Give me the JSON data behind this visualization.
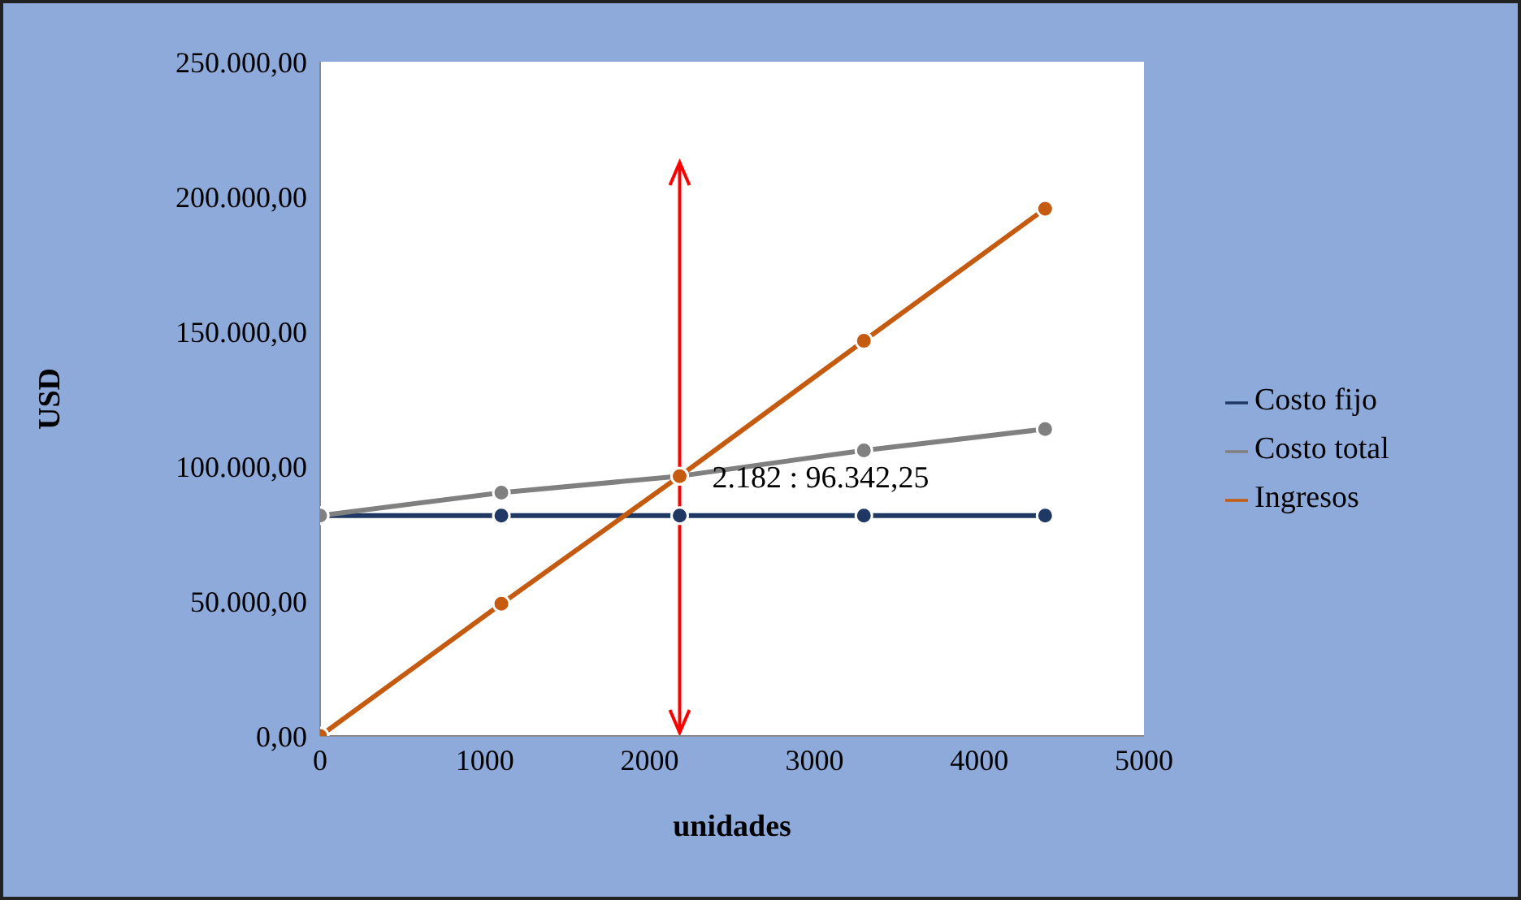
{
  "chart_data": {
    "type": "line",
    "xlabel": "unidades",
    "ylabel": "USD",
    "x": [
      0,
      1100,
      2182,
      3300,
      4400
    ],
    "series": [
      {
        "name": "Costo fijo",
        "color": "#1f3864",
        "values": [
          81700,
          81700,
          81700,
          81700,
          81700
        ]
      },
      {
        "name": "Costo total",
        "color": "#808080",
        "values": [
          81700,
          90200,
          96342.25,
          105900,
          113800
        ]
      },
      {
        "name": "Ingresos",
        "color": "#c55a11",
        "values": [
          0,
          49000,
          96342.25,
          146500,
          195500
        ]
      }
    ],
    "xlim": [
      0,
      5000
    ],
    "xticks": [
      0,
      1000,
      2000,
      3000,
      4000,
      5000
    ],
    "ylim": [
      0,
      250000
    ],
    "yticks": [
      {
        "value": 0,
        "label": "0,00"
      },
      {
        "value": 50000,
        "label": "50.000,00"
      },
      {
        "value": 100000,
        "label": "100.000,00"
      },
      {
        "value": 150000,
        "label": "150.000,00"
      },
      {
        "value": 200000,
        "label": "200.000,00"
      },
      {
        "value": 250000,
        "label": "250.000,00"
      }
    ],
    "annotations": [
      {
        "text": "2.182 : 96.342,25",
        "x": 2182,
        "y": 96342.25
      }
    ],
    "ref_lines": [
      {
        "axis": "x",
        "value": 2182,
        "color": "#ff0000"
      }
    ],
    "grid": false,
    "legend": "right",
    "marker": "circle",
    "line_style": "solid"
  }
}
